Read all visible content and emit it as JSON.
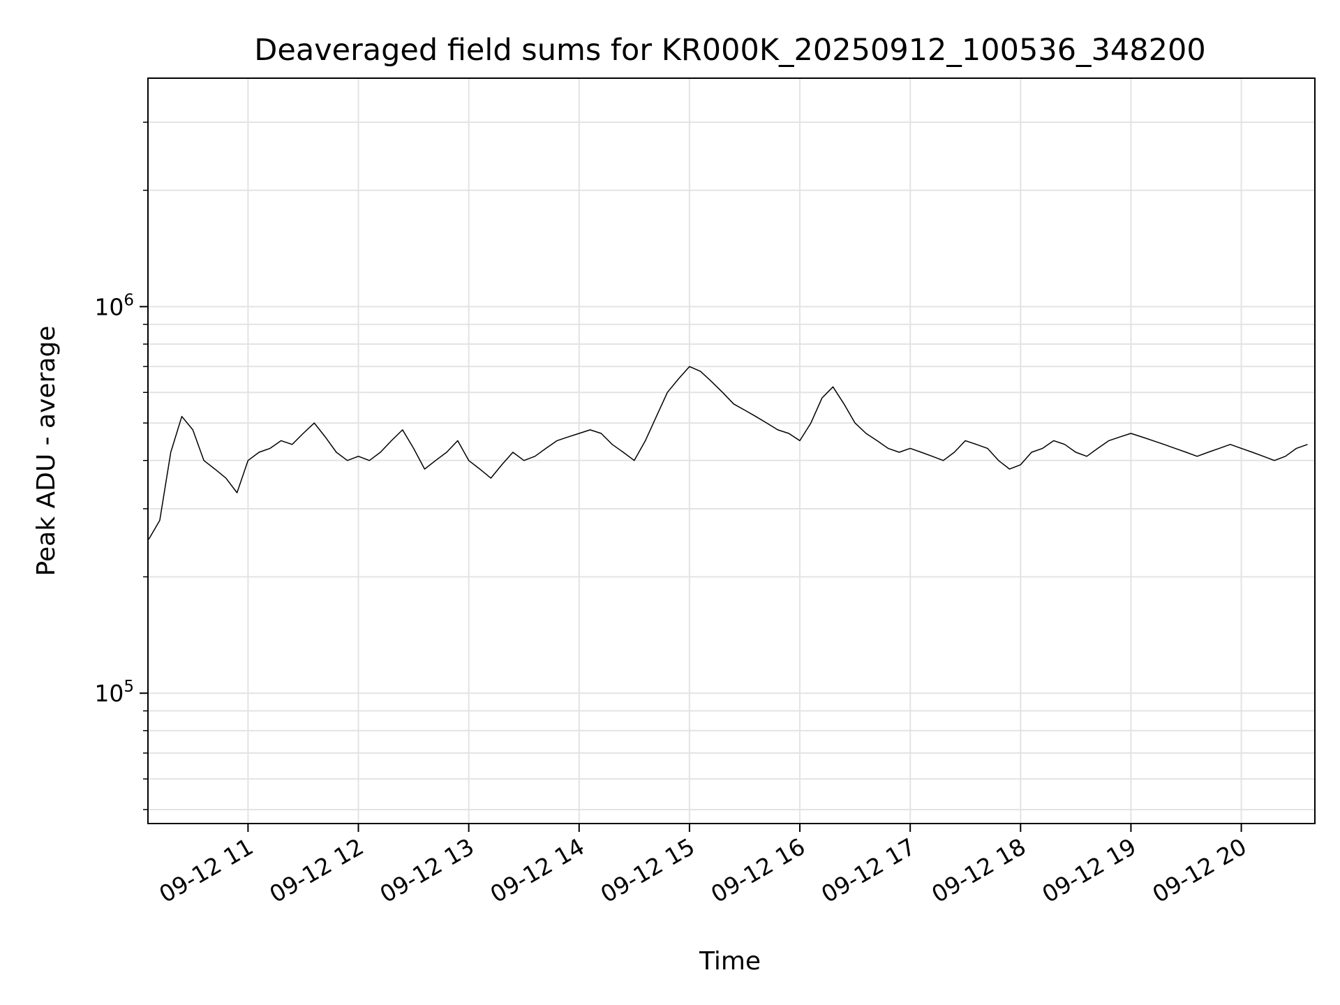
{
  "chart_data": {
    "type": "line",
    "title": "Deaveraged field sums for KR000K_20250912_100536_348200",
    "xlabel": "Time",
    "ylabel": "Peak ADU - average",
    "y_scale": "log",
    "ylim": [
      46000,
      3900000
    ],
    "xlim": [
      "2025-09-12 10:05:36",
      "2025-09-12 20:40:00"
    ],
    "x_ticks": [
      "09-12 11",
      "09-12 12",
      "09-12 13",
      "09-12 14",
      "09-12 15",
      "09-12 16",
      "09-12 17",
      "09-12 18",
      "09-12 19",
      "09-12 20"
    ],
    "y_ticks": [
      {
        "mantissa": "10",
        "exponent": "5",
        "value": 100000
      },
      {
        "mantissa": "10",
        "exponent": "6",
        "value": 1000000
      }
    ],
    "grid": true,
    "line_color": "#000000",
    "series": [
      {
        "x": [
          "2025-09-12 10:06",
          "2025-09-12 10:12",
          "2025-09-12 10:18",
          "2025-09-12 10:24",
          "2025-09-12 10:30",
          "2025-09-12 10:36",
          "2025-09-12 10:42",
          "2025-09-12 10:48",
          "2025-09-12 10:54",
          "2025-09-12 11:00",
          "2025-09-12 11:06",
          "2025-09-12 11:12",
          "2025-09-12 11:18",
          "2025-09-12 11:24",
          "2025-09-12 11:30",
          "2025-09-12 11:36",
          "2025-09-12 11:42",
          "2025-09-12 11:48",
          "2025-09-12 11:54",
          "2025-09-12 12:00",
          "2025-09-12 12:06",
          "2025-09-12 12:12",
          "2025-09-12 12:18",
          "2025-09-12 12:24",
          "2025-09-12 12:30",
          "2025-09-12 12:36",
          "2025-09-12 12:42",
          "2025-09-12 12:48",
          "2025-09-12 12:54",
          "2025-09-12 13:00",
          "2025-09-12 13:06",
          "2025-09-12 13:12",
          "2025-09-12 13:18",
          "2025-09-12 13:24",
          "2025-09-12 13:30",
          "2025-09-12 13:36",
          "2025-09-12 13:42",
          "2025-09-12 13:48",
          "2025-09-12 13:54",
          "2025-09-12 14:00",
          "2025-09-12 14:06",
          "2025-09-12 14:12",
          "2025-09-12 14:18",
          "2025-09-12 14:24",
          "2025-09-12 14:30",
          "2025-09-12 14:36",
          "2025-09-12 14:42",
          "2025-09-12 14:48",
          "2025-09-12 14:54",
          "2025-09-12 15:00",
          "2025-09-12 15:06",
          "2025-09-12 15:12",
          "2025-09-12 15:18",
          "2025-09-12 15:24",
          "2025-09-12 15:30",
          "2025-09-12 15:36",
          "2025-09-12 15:42",
          "2025-09-12 15:48",
          "2025-09-12 15:54",
          "2025-09-12 16:00",
          "2025-09-12 16:06",
          "2025-09-12 16:12",
          "2025-09-12 16:18",
          "2025-09-12 16:24",
          "2025-09-12 16:30",
          "2025-09-12 16:36",
          "2025-09-12 16:42",
          "2025-09-12 16:48",
          "2025-09-12 16:54",
          "2025-09-12 17:00",
          "2025-09-12 17:06",
          "2025-09-12 17:12",
          "2025-09-12 17:18",
          "2025-09-12 17:24",
          "2025-09-12 17:30",
          "2025-09-12 17:36",
          "2025-09-12 17:42",
          "2025-09-12 17:48",
          "2025-09-12 17:54",
          "2025-09-12 18:00",
          "2025-09-12 18:06",
          "2025-09-12 18:12",
          "2025-09-12 18:18",
          "2025-09-12 18:24",
          "2025-09-12 18:30",
          "2025-09-12 18:36",
          "2025-09-12 18:42",
          "2025-09-12 18:48",
          "2025-09-12 18:54",
          "2025-09-12 19:00",
          "2025-09-12 19:06",
          "2025-09-12 19:12",
          "2025-09-12 19:18",
          "2025-09-12 19:24",
          "2025-09-12 19:30",
          "2025-09-12 19:36",
          "2025-09-12 19:42",
          "2025-09-12 19:48",
          "2025-09-12 19:54",
          "2025-09-12 20:00",
          "2025-09-12 20:06",
          "2025-09-12 20:12",
          "2025-09-12 20:18",
          "2025-09-12 20:24",
          "2025-09-12 20:30",
          "2025-09-12 20:36"
        ],
        "y": [
          250000,
          280000,
          420000,
          520000,
          480000,
          400000,
          380000,
          360000,
          330000,
          400000,
          420000,
          430000,
          450000,
          440000,
          470000,
          500000,
          460000,
          420000,
          400000,
          410000,
          400000,
          420000,
          450000,
          480000,
          430000,
          380000,
          400000,
          420000,
          450000,
          400000,
          380000,
          360000,
          390000,
          420000,
          400000,
          410000,
          430000,
          450000,
          460000,
          470000,
          480000,
          470000,
          440000,
          420000,
          400000,
          450000,
          520000,
          600000,
          650000,
          700000,
          680000,
          640000,
          600000,
          560000,
          540000,
          520000,
          500000,
          480000,
          470000,
          450000,
          500000,
          580000,
          620000,
          560000,
          500000,
          470000,
          450000,
          430000,
          420000,
          430000,
          420000,
          410000,
          400000,
          420000,
          450000,
          440000,
          430000,
          400000,
          380000,
          390000,
          420000,
          430000,
          450000,
          440000,
          420000,
          410000,
          430000,
          450000,
          460000,
          470000,
          460000,
          450000,
          440000,
          430000,
          420000,
          410000,
          420000,
          430000,
          440000,
          430000,
          420000,
          410000,
          400000,
          410000,
          430000,
          440000
        ]
      }
    ]
  }
}
